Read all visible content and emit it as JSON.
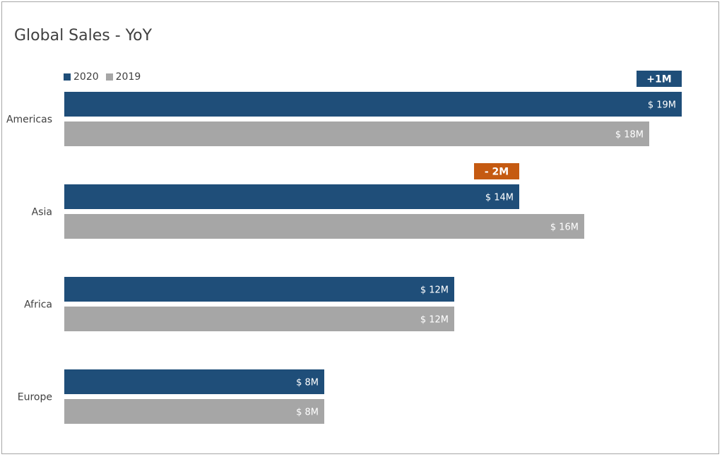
{
  "colors": {
    "series_2020": "#1f4e79",
    "series_2019": "#a6a6a6",
    "positive_diff": "#1f4e79",
    "negative_diff": "#c55a11"
  },
  "chart_data": {
    "type": "bar",
    "orientation": "horizontal",
    "title": "Global Sales - YoY",
    "categories": [
      "Americas",
      "Asia",
      "Africa",
      "Europe"
    ],
    "series": [
      {
        "name": "2020",
        "values": [
          19,
          14,
          12,
          8
        ],
        "labels": [
          "$ 19M",
          "$ 14M",
          "$ 12M",
          "$ 8M"
        ]
      },
      {
        "name": "2019",
        "values": [
          18,
          16,
          12,
          8
        ],
        "labels": [
          "$ 18M",
          "$ 16M",
          "$ 12M",
          "$ 8M"
        ]
      }
    ],
    "differences": [
      "+1M",
      "- 2M",
      "",
      ""
    ],
    "difference_sign": [
      "positive",
      "negative",
      "none",
      "none"
    ],
    "xlim": [
      0,
      19
    ],
    "legend_position": "top-left",
    "grid": false
  }
}
